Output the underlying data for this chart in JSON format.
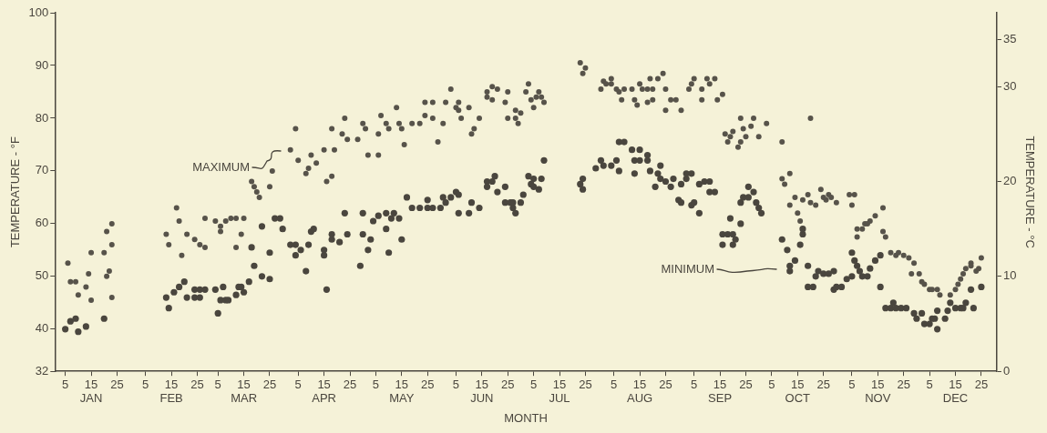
{
  "chart_data": {
    "type": "scatter",
    "xlabel": "MONTH",
    "ylabel": "TEMPERATURE - °F",
    "y2label": "TEMPERATURE - °C",
    "xlim": [
      "--01-01",
      "--12-31"
    ],
    "ylim": [
      32,
      100
    ],
    "y2lim": [
      0,
      37.78
    ],
    "xticks": [
      {
        "value": "--01-05",
        "label": "5"
      },
      {
        "value": "--01-15",
        "label": "15\nJAN"
      },
      {
        "value": "--01-25",
        "label": "25"
      },
      {
        "value": "--02-05",
        "label": "5"
      },
      {
        "value": "--02-15",
        "label": "15\nFEB"
      },
      {
        "value": "--02-25",
        "label": "25"
      },
      {
        "value": "--03-05",
        "label": "5"
      },
      {
        "value": "--03-15",
        "label": "15\nMAR"
      },
      {
        "value": "--03-25",
        "label": "25"
      },
      {
        "value": "--04-05",
        "label": "5"
      },
      {
        "value": "--04-15",
        "label": "15\nAPR"
      },
      {
        "value": "--04-25",
        "label": "25"
      },
      {
        "value": "--05-05",
        "label": "5"
      },
      {
        "value": "--05-15",
        "label": "15\nMAY"
      },
      {
        "value": "--05-25",
        "label": "25"
      },
      {
        "value": "--06-05",
        "label": "5"
      },
      {
        "value": "--06-15",
        "label": "15\nJUN"
      },
      {
        "value": "--06-25",
        "label": "25"
      },
      {
        "value": "--07-05",
        "label": "5"
      },
      {
        "value": "--07-15",
        "label": "15\nJUL"
      },
      {
        "value": "--07-25",
        "label": "25"
      },
      {
        "value": "--08-05",
        "label": "5"
      },
      {
        "value": "--08-15",
        "label": "15\nAUG"
      },
      {
        "value": "--08-25",
        "label": "25"
      },
      {
        "value": "--09-05",
        "label": "5"
      },
      {
        "value": "--09-15",
        "label": "15\nSEP"
      },
      {
        "value": "--09-25",
        "label": "25"
      },
      {
        "value": "--10-05",
        "label": "5"
      },
      {
        "value": "--10-15",
        "label": "15\nOCT"
      },
      {
        "value": "--10-25",
        "label": "25"
      },
      {
        "value": "--11-05",
        "label": "5"
      },
      {
        "value": "--11-15",
        "label": "15\nNOV"
      },
      {
        "value": "--11-25",
        "label": "25"
      },
      {
        "value": "--12-05",
        "label": "5"
      },
      {
        "value": "--12-15",
        "label": "15\nDEC"
      },
      {
        "value": "--12-25",
        "label": "25"
      }
    ],
    "yticks": [
      32,
      40,
      50,
      60,
      70,
      80,
      90,
      100
    ],
    "y2ticks": [
      0,
      10,
      20,
      30,
      35
    ],
    "grid": false,
    "legend": false,
    "marker": "circle",
    "annotations": [
      "MAXIMUM",
      "MINIMUM"
    ],
    "series": [
      {
        "color": "#57534a",
        "x": [
          "--01-06",
          "--01-07",
          "--01-09",
          "--01-10",
          "--01-13",
          "--01-14",
          "--01-15",
          "--01-15",
          "--01-20",
          "--01-21",
          "--01-21",
          "--01-22",
          "--01-23",
          "--01-23",
          "--01-23",
          "--02-13",
          "--02-14",
          "--02-17",
          "--02-18",
          "--02-19",
          "--02-21",
          "--02-24",
          "--02-26",
          "--02-28",
          "--02-28",
          "--03-04",
          "--03-06",
          "--03-06",
          "--03-08",
          "--03-10",
          "--03-12",
          "--03-15",
          "--03-14",
          "--03-12",
          "--03-18",
          "--03-19",
          "--03-20",
          "--03-21",
          "--03-25",
          "--03-26",
          "--04-02",
          "--04-04",
          "--04-05",
          "--04-08",
          "--04-09",
          "--04-10",
          "--04-12",
          "--04-15",
          "--04-16",
          "--04-18",
          "--04-18",
          "--04-19",
          "--04-22",
          "--04-23",
          "--04-24",
          "--04-28",
          "--04-30",
          "--05-01",
          "--05-02",
          "--05-06",
          "--05-06",
          "--05-07",
          "--05-09",
          "--05-10",
          "--05-13",
          "--05-14",
          "--05-15",
          "--05-16",
          "--05-19",
          "--05-22",
          "--05-24",
          "--05-24",
          "--05-27",
          "--05-27",
          "--05-29",
          "--05-31",
          "--06-01",
          "--06-03",
          "--06-05",
          "--06-06",
          "--06-06",
          "--06-07",
          "--06-10",
          "--06-11",
          "--06-12",
          "--06-14",
          "--06-17",
          "--06-17",
          "--06-19",
          "--06-19",
          "--06-21",
          "--06-24",
          "--06-25",
          "--06-25",
          "--06-28",
          "--06-28",
          "--06-29",
          "--06-30",
          "--07-02",
          "--07-03",
          "--07-04",
          "--07-05",
          "--07-06",
          "--07-07",
          "--07-08",
          "--07-09",
          "--07-23",
          "--07-25",
          "--07-24",
          "--07-31",
          "--08-01",
          "--08-02",
          "--08-04",
          "--08-04",
          "--08-06",
          "--08-07",
          "--08-08",
          "--08-09",
          "--08-12",
          "--08-13",
          "--08-14",
          "--08-15",
          "--08-16",
          "--08-18",
          "--08-18",
          "--08-19",
          "--08-20",
          "--08-20",
          "--08-22",
          "--08-24",
          "--08-25",
          "--08-25",
          "--08-27",
          "--08-29",
          "--08-31",
          "--09-03",
          "--09-04",
          "--09-05",
          "--09-08",
          "--09-08",
          "--09-10",
          "--09-11",
          "--09-13",
          "--09-14",
          "--09-16",
          "--09-17",
          "--09-18",
          "--09-19",
          "--09-20",
          "--09-22",
          "--09-23",
          "--09-23",
          "--09-24",
          "--09-25",
          "--09-27",
          "--09-28",
          "--09-30",
          "--10-03",
          "--10-09",
          "--10-20",
          "--10-09",
          "--10-10",
          "--10-12",
          "--10-12",
          "--10-14",
          "--10-15",
          "--10-16",
          "--10-17",
          "--10-19",
          "--10-20",
          "--10-22",
          "--10-24",
          "--10-25",
          "--10-26",
          "--10-27",
          "--10-28",
          "--10-30",
          "--11-04",
          "--11-06",
          "--11-05",
          "--11-07",
          "--11-07",
          "--11-09",
          "--11-10",
          "--11-11",
          "--11-12",
          "--11-14",
          "--11-17",
          "--11-17",
          "--11-18",
          "--11-20",
          "--11-22",
          "--11-23",
          "--11-25",
          "--11-27",
          "--11-29",
          "--11-28",
          "--12-01",
          "--12-02",
          "--12-03",
          "--12-05",
          "--12-06",
          "--12-08",
          "--12-09",
          "--12-13",
          "--12-15",
          "--12-16",
          "--12-17",
          "--12-18",
          "--12-19",
          "--12-21",
          "--12-21",
          "--12-23",
          "--12-24",
          "--12-25"
        ],
        "values": [
          52.5,
          49,
          49,
          46.5,
          48,
          50.5,
          54.5,
          45.5,
          54.5,
          50,
          58.5,
          51,
          56,
          60,
          46,
          58,
          56,
          63,
          60.5,
          54,
          58,
          57,
          56,
          55.5,
          61,
          60.5,
          59.5,
          58.5,
          60.5,
          61,
          61,
          61,
          58,
          55.5,
          68,
          67,
          66,
          65,
          67,
          70,
          74,
          78,
          72,
          69.5,
          70.5,
          73,
          71.5,
          74,
          68,
          69,
          78,
          74,
          77,
          80,
          76,
          76,
          79,
          78,
          73,
          73,
          77,
          80.5,
          79,
          78,
          82,
          79,
          78,
          75,
          79,
          79,
          80.5,
          83,
          83,
          80,
          75.5,
          79,
          83,
          85.5,
          82,
          83,
          81.5,
          80,
          82,
          77,
          78,
          80,
          84,
          85,
          83.5,
          86,
          85.5,
          83,
          85,
          80,
          80,
          81.5,
          79,
          81,
          85,
          86.5,
          83.5,
          82,
          84,
          85,
          84,
          83,
          90.5,
          89.5,
          88.5,
          85.5,
          87,
          86.5,
          87.5,
          86.5,
          85.5,
          85,
          83.5,
          85.5,
          85.5,
          83.5,
          82.5,
          86.5,
          85.5,
          83,
          85.5,
          87.5,
          83.5,
          85.5,
          87.5,
          88.5,
          85.5,
          81.5,
          83.5,
          83.5,
          81.5,
          85.5,
          86.5,
          87.5,
          83.5,
          85.5,
          87.5,
          86.5,
          87.5,
          83.5,
          84.5,
          77,
          75.5,
          76.5,
          77.5,
          74.5,
          75.5,
          80,
          78,
          76.5,
          78.5,
          80,
          76.5,
          79,
          75.5,
          80,
          68.5,
          67.5,
          69.5,
          63.5,
          65,
          62,
          60.5,
          64.5,
          65.5,
          64,
          63.5,
          66.5,
          65,
          64.5,
          65.5,
          65,
          64,
          65.5,
          65.5,
          63.5,
          59,
          57.5,
          59,
          60,
          60,
          60.5,
          61.5,
          63,
          58.5,
          57.5,
          54.5,
          54,
          54.5,
          54,
          53.5,
          52.5,
          50.5,
          50.5,
          49,
          48.5,
          47.5,
          47.5,
          47.5,
          46.5,
          46.5,
          47.5,
          48.5,
          49.5,
          50.5,
          51.5,
          52.5,
          52,
          51,
          51.5,
          53.5
        ]
      },
      {
        "color": "#4a463e",
        "x": [
          "--01-05",
          "--01-07",
          "--01-09",
          "--01-10",
          "--01-13",
          "--01-20",
          "--02-13",
          "--02-14",
          "--02-16",
          "--02-18",
          "--02-20",
          "--02-21",
          "--02-24",
          "--02-24",
          "--02-26",
          "--02-26",
          "--02-28",
          "--03-04",
          "--03-05",
          "--03-06",
          "--03-07",
          "--03-08",
          "--03-09",
          "--03-12",
          "--03-13",
          "--03-14",
          "--03-15",
          "--03-17",
          "--03-19",
          "--03-18",
          "--03-22",
          "--03-22",
          "--03-25",
          "--03-25",
          "--03-27",
          "--03-29",
          "--03-30",
          "--04-02",
          "--04-04",
          "--04-04",
          "--04-06",
          "--04-08",
          "--04-09",
          "--04-10",
          "--04-11",
          "--04-15",
          "--04-15",
          "--04-16",
          "--04-18",
          "--04-18",
          "--04-21",
          "--04-23",
          "--04-24",
          "--04-29",
          "--04-30",
          "--04-30",
          "--05-02",
          "--05-03",
          "--05-04",
          "--05-06",
          "--05-09",
          "--05-09",
          "--05-10",
          "--05-11",
          "--05-12",
          "--05-14",
          "--05-15",
          "--05-17",
          "--05-19",
          "--05-22",
          "--05-25",
          "--05-25",
          "--05-27",
          "--05-30",
          "--05-31",
          "--06-01",
          "--06-03",
          "--06-05",
          "--06-06",
          "--06-06",
          "--06-10",
          "--06-11",
          "--06-14",
          "--06-17",
          "--06-17",
          "--06-19",
          "--06-20",
          "--06-21",
          "--06-24",
          "--06-24",
          "--06-26",
          "--06-27",
          "--06-27",
          "--06-28",
          "--06-30",
          "--07-01",
          "--07-03",
          "--07-04",
          "--07-05",
          "--07-05",
          "--07-07",
          "--07-08",
          "--07-09",
          "--07-23",
          "--07-24",
          "--07-24",
          "--07-29",
          "--07-31",
          "--08-01",
          "--08-04",
          "--08-06",
          "--08-07",
          "--08-07",
          "--08-09",
          "--08-12",
          "--08-13",
          "--08-13",
          "--08-15",
          "--08-15",
          "--08-18",
          "--08-18",
          "--08-19",
          "--08-21",
          "--08-22",
          "--08-23",
          "--08-23",
          "--08-25",
          "--08-27",
          "--08-28",
          "--08-30",
          "--08-31",
          "--08-31",
          "--09-02",
          "--09-02",
          "--09-04",
          "--09-04",
          "--09-05",
          "--09-07",
          "--09-07",
          "--09-09",
          "--09-11",
          "--09-11",
          "--09-13",
          "--09-16",
          "--09-16",
          "--09-18",
          "--09-19",
          "--09-20",
          "--09-20",
          "--09-21",
          "--09-23",
          "--09-23",
          "--09-24",
          "--09-26",
          "--09-26",
          "--09-28",
          "--09-29",
          "--09-30",
          "--10-01",
          "--10-09",
          "--10-11",
          "--10-12",
          "--10-12",
          "--10-14",
          "--10-16",
          "--10-17",
          "--10-17",
          "--10-19",
          "--10-19",
          "--10-21",
          "--10-22",
          "--10-23",
          "--10-25",
          "--10-27",
          "--10-29",
          "--10-29",
          "--10-30",
          "--11-01",
          "--11-03",
          "--11-05",
          "--11-05",
          "--11-06",
          "--11-07",
          "--11-08",
          "--11-09",
          "--11-11",
          "--11-12",
          "--11-14",
          "--11-16",
          "--11-16",
          "--11-18",
          "--11-20",
          "--11-21",
          "--11-22",
          "--11-24",
          "--11-26",
          "--11-29",
          "--11-30",
          "--12-02",
          "--12-03",
          "--12-05",
          "--12-06",
          "--12-07",
          "--12-08",
          "--12-08",
          "--12-11",
          "--12-12",
          "--12-13",
          "--12-15",
          "--12-17",
          "--12-18",
          "--12-19",
          "--12-21",
          "--12-22",
          "--12-25"
        ],
        "values": [
          40,
          41.5,
          42,
          39.5,
          40.5,
          42,
          46,
          44,
          47,
          48,
          49,
          46,
          47.5,
          46,
          47.5,
          46,
          47.5,
          47.5,
          43,
          45.5,
          48,
          45.5,
          45.5,
          46.5,
          48,
          48,
          47,
          49,
          52,
          55.5,
          50,
          59.5,
          49.5,
          54.5,
          61,
          61,
          59,
          56,
          56,
          54,
          55,
          51,
          56,
          58.5,
          59,
          54,
          55,
          47.5,
          57,
          58,
          56.5,
          62,
          58,
          52,
          62,
          58,
          55,
          57,
          60.5,
          61.5,
          62,
          59,
          54.5,
          61,
          62,
          61,
          57,
          65,
          63,
          63,
          64.5,
          63,
          63,
          63,
          65,
          64,
          65,
          66,
          65.5,
          62,
          62,
          64,
          63,
          68,
          67,
          68,
          69,
          66,
          67,
          64,
          64,
          64,
          63,
          62,
          64,
          65.5,
          69,
          67.5,
          67,
          68.5,
          66.5,
          68.5,
          72,
          67.5,
          66.5,
          68.5,
          70.5,
          72,
          71,
          71,
          72,
          70,
          75.5,
          75.5,
          74,
          69.5,
          72,
          74,
          72,
          72,
          73,
          70,
          67,
          69.5,
          71,
          68.5,
          68,
          67,
          68.5,
          64.5,
          64,
          67.5,
          68.5,
          69.5,
          69.5,
          63.5,
          64,
          62,
          67.5,
          68,
          68,
          66,
          66,
          58,
          56,
          58,
          61,
          58,
          56,
          57,
          60,
          64,
          65,
          65,
          67,
          66,
          64,
          63,
          62,
          57,
          55,
          51,
          52,
          53,
          56,
          58,
          59,
          52,
          48,
          48,
          50,
          51,
          50.5,
          50.5,
          51,
          47.5,
          48,
          48,
          49.5,
          50,
          54.5,
          53,
          52,
          51,
          50,
          50,
          51.5,
          53,
          54,
          48,
          44,
          44,
          45,
          44,
          44,
          44,
          43,
          42,
          43,
          41,
          41,
          42,
          42,
          40,
          43.5,
          42,
          43.5,
          45,
          44,
          44,
          44,
          45,
          47.5,
          44,
          48
        ]
      }
    ]
  }
}
